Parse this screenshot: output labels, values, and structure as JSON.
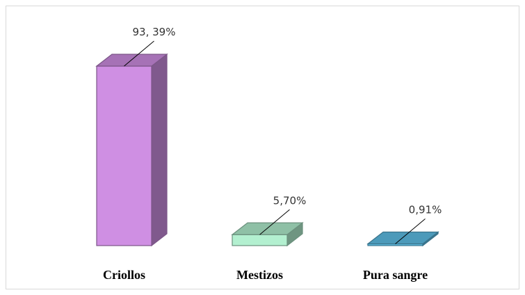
{
  "chart_data": {
    "type": "bar3d",
    "categories": [
      "Criollos",
      "Mestizos",
      "Pura sangre"
    ],
    "values": [
      93.39,
      5.7,
      0.91
    ],
    "value_labels": [
      "93, 39%",
      "5,70%",
      "0,91%"
    ],
    "colors": [
      "#cf8fe3",
      "#b3f0d0",
      "#5fc0e8"
    ]
  }
}
